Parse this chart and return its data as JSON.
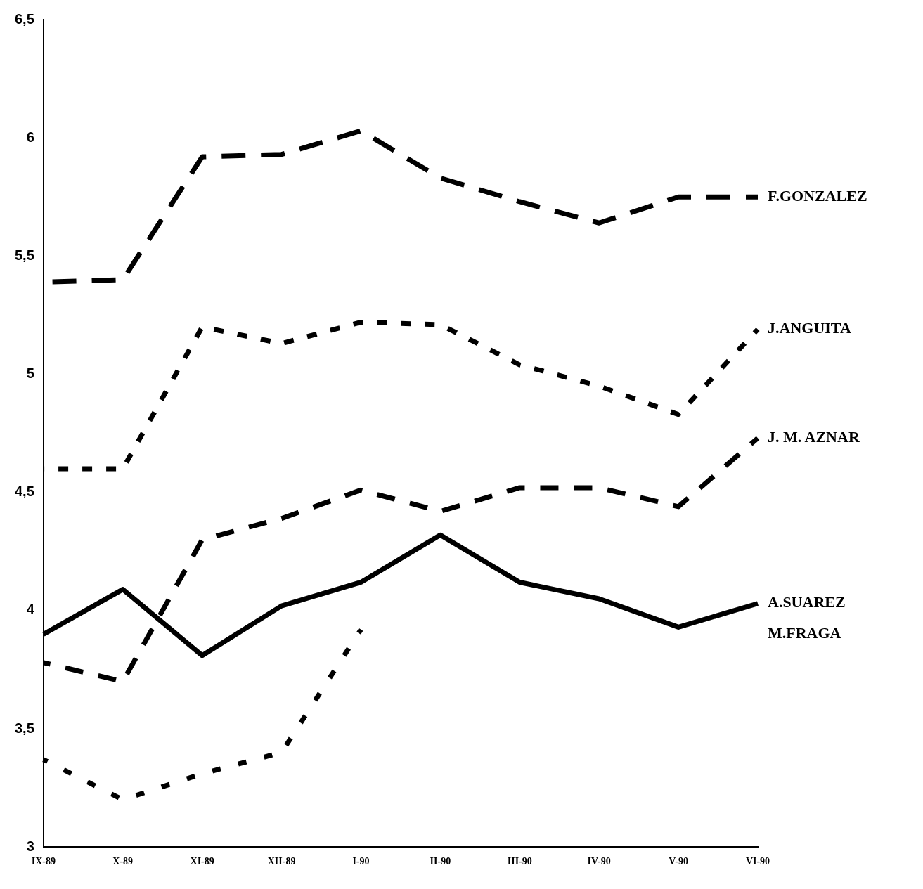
{
  "chart_data": {
    "type": "line",
    "categories": [
      "IX-89",
      "X-89",
      "XI-89",
      "XII-89",
      "I-90",
      "II-90",
      "III-90",
      "IV-90",
      "V-90",
      "VI-90"
    ],
    "series": [
      {
        "name": "F.GONZALEZ",
        "color": "#000000",
        "line_style": "dashed",
        "values": [
          5.39,
          5.4,
          5.92,
          5.93,
          6.03,
          5.83,
          5.73,
          5.64,
          5.75,
          5.75
        ]
      },
      {
        "name": "J.ANGUITA",
        "color": "#000000",
        "line_style": "dashed",
        "values": [
          4.6,
          4.6,
          5.2,
          5.13,
          5.22,
          5.21,
          5.04,
          4.95,
          4.83,
          5.19
        ]
      },
      {
        "name": "J. M. AZNAR",
        "color": "#000000",
        "line_style": "dashed",
        "values": [
          3.78,
          3.7,
          4.3,
          4.39,
          4.51,
          4.42,
          4.52,
          4.52,
          4.44,
          4.73
        ]
      },
      {
        "name": "A.SUAREZ",
        "color": "#000000",
        "line_style": "solid",
        "values": [
          3.9,
          4.09,
          3.81,
          4.02,
          4.12,
          4.32,
          4.12,
          4.05,
          3.93,
          4.03
        ]
      },
      {
        "name": "M.FRAGA",
        "color": "#000000",
        "line_style": "dashed",
        "values": [
          3.37,
          3.2,
          3.31,
          3.4,
          3.92,
          null,
          null,
          null,
          null,
          null
        ]
      }
    ],
    "ylim": [
      3,
      6.5
    ],
    "yticks": [
      3,
      {
        "value": 3.5,
        "label": "3,5"
      },
      4,
      {
        "value": 4.5,
        "label": "4,5"
      },
      5,
      {
        "value": 5.5,
        "label": "5,5"
      },
      6,
      {
        "value": 6.5,
        "label": "6,5"
      }
    ],
    "grid": false,
    "legend": false,
    "marker": "none"
  }
}
